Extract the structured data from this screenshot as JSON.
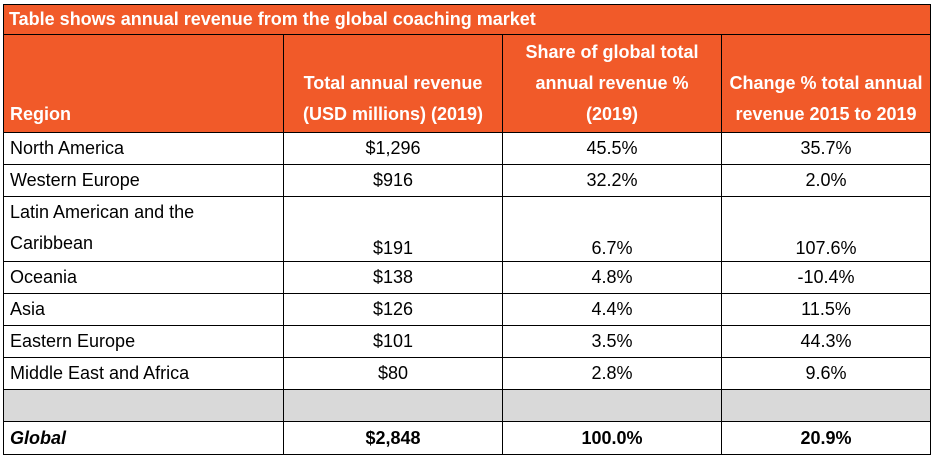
{
  "title": "Table shows annual revenue from the global coaching market",
  "headers": {
    "region": "Region",
    "revenue": "Total annual revenue (USD millions) (2019)",
    "share": "Share of global total annual revenue % (2019)",
    "change": "Change % total annual revenue 2015 to 2019"
  },
  "rows": [
    {
      "region": "North America",
      "revenue": "$1,296",
      "share": "45.5%",
      "change": "35.7%"
    },
    {
      "region": "Western Europe",
      "revenue": "$916",
      "share": "32.2%",
      "change": "2.0%"
    },
    {
      "region": "Latin American and the Caribbean",
      "revenue": "$191",
      "share": "6.7%",
      "change": "107.6%"
    },
    {
      "region": "Oceania",
      "revenue": "$138",
      "share": "4.8%",
      "change": "-10.4%"
    },
    {
      "region": "Asia",
      "revenue": "$126",
      "share": "4.4%",
      "change": "11.5%"
    },
    {
      "region": "Eastern Europe",
      "revenue": "$101",
      "share": "3.5%",
      "change": "44.3%"
    },
    {
      "region": "Middle East and Africa",
      "revenue": "$80",
      "share": "2.8%",
      "change": "9.6%"
    }
  ],
  "total": {
    "region": "Global",
    "revenue": "$2,848",
    "share": "100.0%",
    "change": "20.9%"
  },
  "colors": {
    "header_bg": "#f15a29",
    "header_text": "#ffffff",
    "blank_row": "#d9d9d9"
  }
}
